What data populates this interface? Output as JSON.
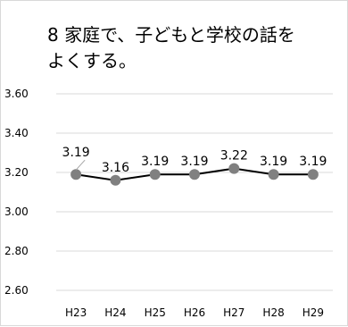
{
  "chart_data": {
    "type": "line",
    "title": "8 家庭で、子どもと学校の話を\nよくする。",
    "categories": [
      "H23",
      "H24",
      "H25",
      "H26",
      "H27",
      "H28",
      "H29"
    ],
    "series": [
      {
        "values": [
          3.19,
          3.16,
          3.19,
          3.19,
          3.22,
          3.19,
          3.19
        ],
        "data_labels": [
          "3.19",
          "3.16",
          "3.19",
          "3.19",
          "3.22",
          "3.19",
          "3.19"
        ],
        "line_color": "#000000",
        "marker_color": "#808080"
      }
    ],
    "ylim": [
      2.6,
      3.6
    ],
    "yticks": [
      2.6,
      2.8,
      3.0,
      3.2,
      3.4,
      3.6
    ],
    "ytick_labels": [
      "2.60",
      "2.80",
      "3.00",
      "3.20",
      "3.40",
      "3.60"
    ],
    "grid": true,
    "gridline_color": "#d9d9d9",
    "legend": false
  }
}
